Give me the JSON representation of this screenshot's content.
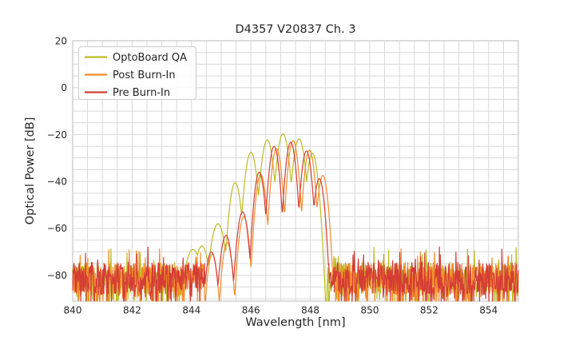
{
  "chart_data": {
    "type": "line",
    "title": "D4357 V20837 Ch. 3",
    "xlabel": "Wavelength [nm]",
    "ylabel": "Optical Power [dB]",
    "xlim": [
      840,
      855
    ],
    "ylim": [
      -91,
      20
    ],
    "x_ticks": [
      "840",
      "842",
      "844",
      "846",
      "848",
      "850",
      "852",
      "854"
    ],
    "x_tick_values": [
      840,
      842,
      844,
      846,
      848,
      850,
      852,
      854
    ],
    "y_ticks": [
      "20",
      "0",
      "−20",
      "−40",
      "−60",
      "−80"
    ],
    "y_tick_values": [
      20,
      0,
      -20,
      -40,
      -60,
      -80
    ],
    "grid": {
      "on": true,
      "which": "both",
      "x_minor_step": 0.5,
      "y_minor_step": 5,
      "color": "#d9d9d9"
    },
    "legend_position": "upper left",
    "spine_color": "#c6c6c6",
    "background": "#ffffff",
    "mode_halfwidth_nm": 0.26,
    "noise": {
      "floor_top_dB": -74.5,
      "spread_dB": 13.5,
      "deep_dip_prob": 0.18,
      "clip_dB": -91
    },
    "sample_step_nm": 0.015,
    "description": "Optical spectra: noise floor ~-75 to -85 dB across 840-855 nm; multi-mode laser peak structure between ~844.3 and ~848.6 nm with ~0.5 nm mode spacing; OptoBoard QA envelope peaks at -19.7 dB @ 847.08 nm, Post Burn-In at -22.6 dB @ 847.42 nm, Pre Burn-In at -23.3 dB @ 847.34 nm.",
    "series": [
      {
        "name": "OptoBoard QA",
        "color": "#bcbd22",
        "seed": 7,
        "zone": [
          844.12,
          848.55
        ],
        "modes": [
          {
            "x": 844.05,
            "peak": -69.0,
            "c": 8
          },
          {
            "x": 844.35,
            "peak": -67.5,
            "c": 12
          },
          {
            "x": 844.89,
            "peak": -58.0,
            "c": 12
          },
          {
            "x": 845.47,
            "peak": -40.5,
            "c": 20
          },
          {
            "x": 846.0,
            "peak": -27.6,
            "c": 19
          },
          {
            "x": 846.55,
            "peak": -22.3,
            "c": 19
          },
          {
            "x": 847.08,
            "peak": -19.7,
            "c": 19
          },
          {
            "x": 847.62,
            "peak": -21.8,
            "c": 19
          },
          {
            "x": 848.07,
            "peak": -28.0,
            "c": 22
          }
        ]
      },
      {
        "name": "Post Burn-In",
        "color": "#f68b29",
        "seed": 13,
        "zone": [
          844.45,
          848.64
        ],
        "modes": [
          {
            "x": 844.7,
            "peak": -71.0,
            "c": 25
          },
          {
            "x": 845.2,
            "peak": -66.0,
            "c": 25
          },
          {
            "x": 845.76,
            "peak": -55.0,
            "c": 25
          },
          {
            "x": 846.33,
            "peak": -37.0,
            "c": 26
          },
          {
            "x": 846.86,
            "peak": -26.0,
            "c": 26
          },
          {
            "x": 847.42,
            "peak": -22.6,
            "c": 26
          },
          {
            "x": 847.97,
            "peak": -26.6,
            "c": 26
          },
          {
            "x": 848.42,
            "peak": -37.4,
            "c": 26
          }
        ]
      },
      {
        "name": "Pre Burn-In",
        "color": "#d43d35",
        "seed": 29,
        "zone": [
          844.45,
          848.56
        ],
        "modes": [
          {
            "x": 844.67,
            "peak": -70.0,
            "c": 20
          },
          {
            "x": 845.16,
            "peak": -63.0,
            "c": 20
          },
          {
            "x": 845.72,
            "peak": -53.0,
            "c": 22
          },
          {
            "x": 846.28,
            "peak": -36.0,
            "c": 26
          },
          {
            "x": 846.78,
            "peak": -25.0,
            "c": 26
          },
          {
            "x": 847.34,
            "peak": -23.3,
            "c": 26
          },
          {
            "x": 847.87,
            "peak": -27.0,
            "c": 26
          },
          {
            "x": 848.3,
            "peak": -38.8,
            "c": 26
          }
        ]
      }
    ]
  },
  "legend": {
    "items": [
      "OptoBoard QA",
      "Post Burn-In",
      "Pre Burn-In"
    ]
  }
}
